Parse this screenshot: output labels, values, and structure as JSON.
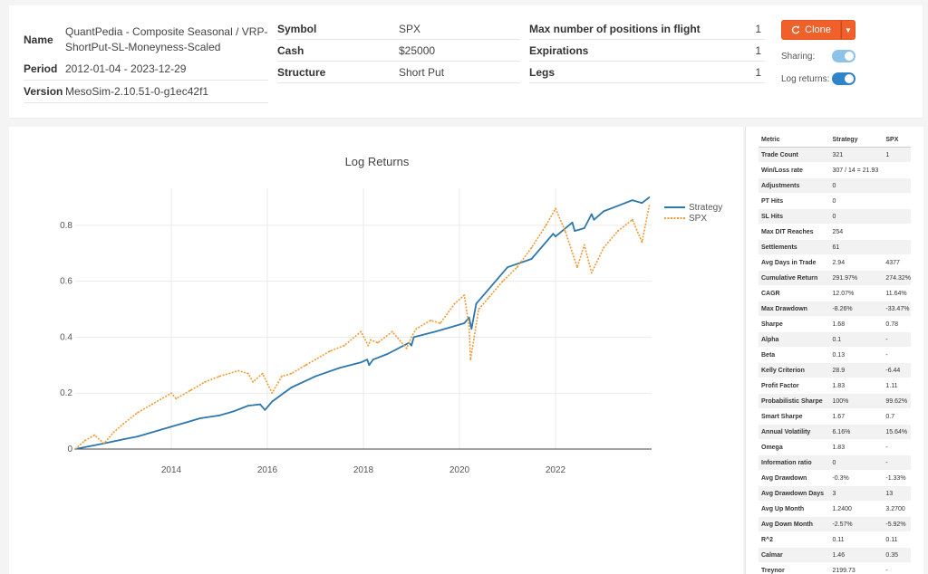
{
  "info": {
    "name_label": "Name",
    "name_value": "QuantPedia - Composite Seasonal / VRP-ShortPut-SL-Moneyness-Scaled",
    "period_label": "Period",
    "period_value": "2012-01-04 - 2023-12-29",
    "version_label": "Version",
    "version_value": "MesoSim-2.10.51-0-g1ec42f1",
    "symbol_label": "Symbol",
    "symbol_value": "SPX",
    "cash_label": "Cash",
    "cash_value": "$25000",
    "structure_label": "Structure",
    "structure_value": "Short Put",
    "max_positions_label": "Max number of positions in flight",
    "max_positions_value": "1",
    "expirations_label": "Expirations",
    "expirations_value": "1",
    "legs_label": "Legs",
    "legs_value": "1"
  },
  "controls": {
    "clone_label": "Clone",
    "clone_color": "#f0602a",
    "sharing_label": "Sharing:",
    "sharing_on": true,
    "log_returns_label": "Log returns:",
    "log_returns_on": true,
    "toggle_color_sharing": "#8ec3e8",
    "toggle_color_log": "#2f83c7"
  },
  "chart_data": {
    "type": "line",
    "title": "Log Returns",
    "xlabel": "",
    "ylabel": "",
    "xlim": [
      2012.0,
      2024.0
    ],
    "ylim": [
      0,
      0.9
    ],
    "x_ticks": [
      2014,
      2016,
      2018,
      2020,
      2022
    ],
    "y_ticks": [
      0,
      0.2,
      0.4,
      0.6,
      0.8
    ],
    "grid": true,
    "legend": "top-right",
    "series": [
      {
        "name": "Strategy",
        "color": "#2e77ac",
        "style": "solid",
        "x": [
          2012.0,
          2012.3,
          2012.6,
          2013.0,
          2013.3,
          2013.6,
          2014.0,
          2014.3,
          2014.6,
          2015.0,
          2015.3,
          2015.6,
          2015.85,
          2015.95,
          2016.1,
          2016.5,
          2017.0,
          2017.5,
          2017.95,
          2018.08,
          2018.12,
          2018.2,
          2018.5,
          2018.95,
          2019.0,
          2019.05,
          2019.5,
          2019.9,
          2020.1,
          2020.2,
          2020.25,
          2020.35,
          2020.6,
          2021.0,
          2021.5,
          2021.95,
          2022.0,
          2022.35,
          2022.4,
          2022.6,
          2022.75,
          2022.8,
          2023.0,
          2023.3,
          2023.6,
          2023.8,
          2023.95
        ],
        "y": [
          0.0,
          0.01,
          0.02,
          0.035,
          0.045,
          0.06,
          0.08,
          0.095,
          0.11,
          0.12,
          0.135,
          0.155,
          0.16,
          0.14,
          0.17,
          0.22,
          0.26,
          0.29,
          0.31,
          0.32,
          0.3,
          0.32,
          0.34,
          0.38,
          0.37,
          0.4,
          0.42,
          0.44,
          0.45,
          0.47,
          0.43,
          0.52,
          0.57,
          0.65,
          0.68,
          0.77,
          0.76,
          0.81,
          0.78,
          0.79,
          0.84,
          0.82,
          0.85,
          0.87,
          0.89,
          0.88,
          0.9
        ]
      },
      {
        "name": "SPX",
        "color": "#ef9a33",
        "style": "dotted",
        "x": [
          2012.0,
          2012.2,
          2012.4,
          2012.6,
          2012.8,
          2013.0,
          2013.3,
          2013.6,
          2014.0,
          2014.1,
          2014.4,
          2014.7,
          2015.0,
          2015.4,
          2015.6,
          2015.7,
          2015.9,
          2016.1,
          2016.3,
          2016.5,
          2016.8,
          2017.0,
          2017.3,
          2017.6,
          2017.95,
          2018.1,
          2018.15,
          2018.3,
          2018.6,
          2018.9,
          2019.0,
          2019.1,
          2019.4,
          2019.6,
          2019.9,
          2020.1,
          2020.2,
          2020.23,
          2020.4,
          2020.6,
          2020.9,
          2021.2,
          2021.5,
          2021.8,
          2022.0,
          2022.2,
          2022.45,
          2022.6,
          2022.75,
          2023.0,
          2023.3,
          2023.6,
          2023.8,
          2023.95
        ],
        "y": [
          0.0,
          0.03,
          0.05,
          0.02,
          0.06,
          0.09,
          0.13,
          0.16,
          0.2,
          0.18,
          0.21,
          0.24,
          0.26,
          0.28,
          0.27,
          0.24,
          0.27,
          0.2,
          0.26,
          0.27,
          0.3,
          0.32,
          0.35,
          0.37,
          0.42,
          0.37,
          0.39,
          0.38,
          0.42,
          0.36,
          0.4,
          0.43,
          0.46,
          0.45,
          0.52,
          0.55,
          0.44,
          0.32,
          0.5,
          0.54,
          0.6,
          0.65,
          0.72,
          0.8,
          0.86,
          0.78,
          0.65,
          0.73,
          0.63,
          0.72,
          0.78,
          0.82,
          0.74,
          0.87
        ]
      }
    ]
  },
  "metrics": {
    "headers": [
      "Metric",
      "Strategy",
      "SPX"
    ],
    "rows": [
      [
        "Trade Count",
        "321",
        "1"
      ],
      [
        "Win/Loss rate",
        "307 / 14 = 21.93",
        ""
      ],
      [
        "Adjustments",
        "0",
        ""
      ],
      [
        "PT Hits",
        "0",
        ""
      ],
      [
        "SL Hits",
        "0",
        ""
      ],
      [
        "Max DIT Reaches",
        "254",
        ""
      ],
      [
        "Settlements",
        "61",
        ""
      ],
      [
        "Avg Days in Trade",
        "2.94",
        "4377"
      ],
      [
        "Cumulative Return",
        "291.97%",
        "274.32%"
      ],
      [
        "CAGR",
        "12.07%",
        "11.64%"
      ],
      [
        "Max Drawdown",
        "-8.26%",
        "-33.47%"
      ],
      [
        "Sharpe",
        "1.68",
        "0.78"
      ],
      [
        "Alpha",
        "0.1",
        "-"
      ],
      [
        "Beta",
        "0.13",
        "-"
      ],
      [
        "Kelly Criterion",
        "28.9",
        "-6.44"
      ],
      [
        "Profit Factor",
        "1.83",
        "1.11"
      ],
      [
        "Probabilistic Sharpe",
        "100%",
        "99.62%"
      ],
      [
        "Smart Sharpe",
        "1.67",
        "0.7"
      ],
      [
        "Annual Volatility",
        "6.16%",
        "15.64%"
      ],
      [
        "Omega",
        "1.83",
        "-"
      ],
      [
        "Information ratio",
        "0",
        "-"
      ],
      [
        "Avg Drawdown",
        "-0.3%",
        "-1.33%"
      ],
      [
        "Avg Drawdown Days",
        "3",
        "13"
      ],
      [
        "Avg Up Month",
        "1.2400",
        "3.2700"
      ],
      [
        "Avg Down Month",
        "-2.57%",
        "-5.92%"
      ],
      [
        "R^2",
        "0.11",
        "0.11"
      ],
      [
        "Calmar",
        "1.46",
        "0.35"
      ],
      [
        "Treynor",
        "2199.73",
        "-"
      ]
    ]
  }
}
